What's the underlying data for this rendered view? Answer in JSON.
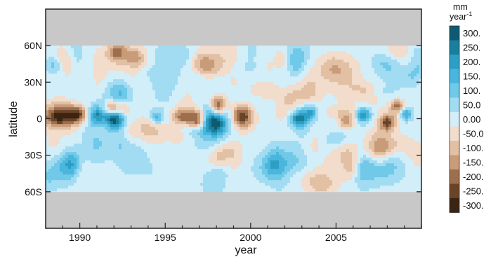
{
  "chart_data": {
    "type": "heatmap",
    "title": "",
    "xlabel": "year",
    "ylabel": "latitude",
    "xlim": [
      1988,
      2010
    ],
    "ylim": [
      -90,
      90
    ],
    "x_ticks": [
      {
        "value": 1990,
        "label": "1990"
      },
      {
        "value": 1995,
        "label": "1995"
      },
      {
        "value": 2000,
        "label": "2000"
      },
      {
        "value": 2005,
        "label": "2005"
      }
    ],
    "y_ticks": [
      {
        "value": 60,
        "label": "60N"
      },
      {
        "value": 30,
        "label": "30N"
      },
      {
        "value": 0,
        "label": "0"
      },
      {
        "value": -30,
        "label": "30S"
      },
      {
        "value": -60,
        "label": "60S"
      }
    ],
    "data_lat_range": [
      -60,
      60
    ],
    "no_data_color": "#c8c8c8",
    "colorbar": {
      "unit_line1": "mm",
      "unit_line2": "year",
      "unit_exponent": "-1",
      "labels": [
        "300.",
        "250.",
        "200.",
        "150.",
        "100.",
        "50.0",
        "0.00",
        "-50.0",
        "-100.",
        "-150.",
        "-200.",
        "-250.",
        "-300."
      ],
      "colors": [
        "#0e5a72",
        "#1a7f9c",
        "#2d9fc4",
        "#4ab6dd",
        "#70c9e8",
        "#a2dcf2",
        "#d2eef9",
        "#f2dccb",
        "#e2c0a3",
        "#c99c79",
        "#9d6f4e",
        "#6a4427",
        "#3c2412"
      ]
    },
    "features": [
      {
        "year": 1988.8,
        "lat": 2,
        "value": -300,
        "sx": 0.7,
        "sy": 7
      },
      {
        "year": 1989.9,
        "lat": 3,
        "value": -220,
        "sx": 0.4,
        "sy": 5
      },
      {
        "year": 1991.0,
        "lat": 3,
        "value": 200,
        "sx": 0.35,
        "sy": 5
      },
      {
        "year": 1991.9,
        "lat": 9,
        "value": -220,
        "sx": 0.3,
        "sy": 4
      },
      {
        "year": 1992.0,
        "lat": -1,
        "value": 280,
        "sx": 0.35,
        "sy": 5
      },
      {
        "year": 1992.6,
        "lat": 8,
        "value": -160,
        "sx": 0.3,
        "sy": 4
      },
      {
        "year": 1994.5,
        "lat": 1,
        "value": 170,
        "sx": 0.3,
        "sy": 4
      },
      {
        "year": 1996.0,
        "lat": 2,
        "value": -200,
        "sx": 0.4,
        "sy": 5
      },
      {
        "year": 1996.9,
        "lat": -1,
        "value": -280,
        "sx": 0.35,
        "sy": 6
      },
      {
        "year": 1998.1,
        "lat": 10,
        "value": -300,
        "sx": 0.35,
        "sy": 6
      },
      {
        "year": 1997.8,
        "lat": -3,
        "value": 300,
        "sx": 0.55,
        "sy": 9
      },
      {
        "year": 1999.5,
        "lat": 2,
        "value": -280,
        "sx": 0.45,
        "sy": 7
      },
      {
        "year": 2002.8,
        "lat": 0,
        "value": 220,
        "sx": 0.4,
        "sy": 6
      },
      {
        "year": 2003.5,
        "lat": 5,
        "value": 170,
        "sx": 0.3,
        "sy": 4
      },
      {
        "year": 2006.6,
        "lat": 3,
        "value": 250,
        "sx": 0.3,
        "sy": 4
      },
      {
        "year": 2005.6,
        "lat": -3,
        "value": -180,
        "sx": 0.3,
        "sy": 4
      },
      {
        "year": 2008.0,
        "lat": -3,
        "value": -250,
        "sx": 0.35,
        "sy": 5
      },
      {
        "year": 2008.6,
        "lat": 10,
        "value": -200,
        "sx": 0.3,
        "sy": 4
      },
      {
        "year": 2009.1,
        "lat": 4,
        "value": 180,
        "sx": 0.25,
        "sy": 4
      },
      {
        "year": 1992.2,
        "lat": 55,
        "value": -180,
        "sx": 0.4,
        "sy": 6
      },
      {
        "year": 1993.2,
        "lat": 50,
        "value": -160,
        "sx": 0.4,
        "sy": 6
      },
      {
        "year": 1988.5,
        "lat": 45,
        "value": 150,
        "sx": 0.4,
        "sy": 6
      },
      {
        "year": 1989.5,
        "lat": -35,
        "value": 120,
        "sx": 0.5,
        "sy": 8
      },
      {
        "year": 1997.5,
        "lat": 45,
        "value": -130,
        "sx": 0.6,
        "sy": 8
      },
      {
        "year": 1998.5,
        "lat": -30,
        "value": -150,
        "sx": 0.6,
        "sy": 9
      },
      {
        "year": 2001.5,
        "lat": -40,
        "value": 120,
        "sx": 0.8,
        "sy": 9
      },
      {
        "year": 2007.5,
        "lat": -40,
        "value": 140,
        "sx": 0.8,
        "sy": 9
      },
      {
        "year": 2005.0,
        "lat": 40,
        "value": -110,
        "sx": 0.8,
        "sy": 9
      }
    ]
  }
}
